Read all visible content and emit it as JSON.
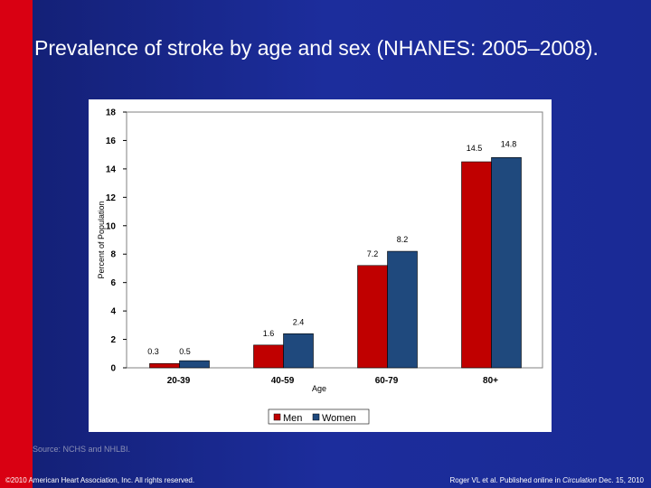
{
  "slide": {
    "title": "Prevalence of stroke by age and sex (NHANES: 2005–2008).",
    "source": "Source: NCHS and NHLBI.",
    "footer_left": "©2010 American Heart Association, Inc. All rights reserved.",
    "footer_right_prefix": "Roger VL et al. Published online in ",
    "footer_right_journal": "Circulation",
    "footer_right_suffix": " Dec. 15, 2010",
    "colors": {
      "background": "#1c2d9c",
      "accent_bar": "#d90012",
      "text": "#ffffff"
    }
  },
  "chart_data": {
    "type": "bar",
    "categories": [
      "20-39",
      "40-59",
      "60-79",
      "80+"
    ],
    "series": [
      {
        "name": "Men",
        "values": [
          0.3,
          1.6,
          7.2,
          14.5
        ],
        "color": "#c00000"
      },
      {
        "name": "Women",
        "values": [
          0.5,
          2.4,
          8.2,
          14.8
        ],
        "color": "#1f497d"
      }
    ],
    "value_labels": [
      [
        "0.3",
        "1.6",
        "7.2",
        "14.5"
      ],
      [
        "0.5",
        "2.4",
        "8.2",
        "14.8"
      ]
    ],
    "xlabel": "Age",
    "ylabel": "Percent of Population",
    "ylim": [
      0,
      18
    ],
    "yticks": [
      0,
      2,
      4,
      6,
      8,
      10,
      12,
      14,
      16,
      18
    ],
    "grid": false,
    "legend_position": "bottom"
  }
}
